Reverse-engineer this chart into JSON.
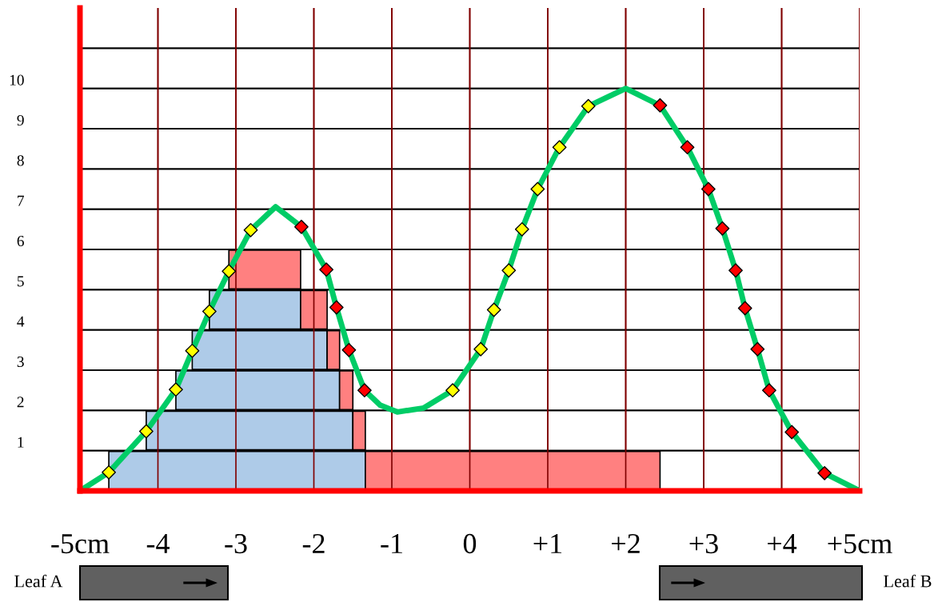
{
  "chart_data": [
    {
      "type": "bar",
      "orientation": "horizontal",
      "xlim": [
        -5,
        5
      ],
      "tick_labels": false,
      "grid": true,
      "categories": [
        null,
        null,
        null,
        null,
        null,
        null,
        null,
        null,
        null,
        null,
        null,
        null
      ],
      "series": [
        {
          "color": "#aecbe8",
          "base": [
            null,
            null,
            null,
            null,
            null,
            null,
            null,
            -3.34,
            -3.56,
            -3.77,
            -4.15,
            -4.63
          ],
          "values": [
            null,
            null,
            null,
            null,
            null,
            null,
            null,
            1.17,
            1.73,
            2.1,
            2.65,
            3.29
          ]
        },
        {
          "color": "#ff8080",
          "base": [
            null,
            null,
            null,
            null,
            null,
            null,
            -3.09,
            -2.17,
            -1.83,
            -1.67,
            -1.5,
            -1.34
          ],
          "values": [
            null,
            null,
            null,
            null,
            null,
            null,
            0.92,
            0.34,
            0.16,
            0.17,
            0.16,
            3.78
          ]
        }
      ]
    },
    {
      "type": "line",
      "xlim": [
        -5,
        5
      ],
      "ylim": [
        0,
        12
      ],
      "xticks": [
        {
          "value": -5,
          "label": "-5cm"
        },
        {
          "value": -4,
          "label": "-4"
        },
        {
          "value": -3,
          "label": "-3"
        },
        {
          "value": -2,
          "label": "-2"
        },
        {
          "value": -1,
          "label": "-1"
        },
        {
          "value": 0,
          "label": "0"
        },
        {
          "value": 1,
          "label": "+1"
        },
        {
          "value": 2,
          "label": "+2"
        },
        {
          "value": 3,
          "label": "+3"
        },
        {
          "value": 4,
          "label": "+4"
        },
        {
          "value": 5,
          "label": "+5cm"
        }
      ],
      "yticks": [
        1,
        2,
        3,
        4,
        5,
        6,
        7,
        8,
        9,
        10,
        {
          "value": 11,
          "label": null
        }
      ],
      "grid": true,
      "annotations": [
        "Leaf A",
        "Leaf B"
      ],
      "series": [
        {
          "color": "#00cc66",
          "x": [
            -5,
            -4.63,
            -4.15,
            -3.77,
            -3.56,
            -3.34,
            -3.09,
            -2.81,
            -2.49,
            -2.16,
            -1.84,
            -1.71,
            -1.55,
            -1.35,
            -1.15,
            -0.93,
            -0.59,
            -0.22,
            0.14,
            0.31,
            0.5,
            0.67,
            0.87,
            1.15,
            1.52,
            2.0,
            2.44,
            2.79,
            3.06,
            3.24,
            3.41,
            3.53,
            3.69,
            3.84,
            4.13,
            4.55,
            5
          ],
          "values": [
            0,
            0.46,
            1.48,
            2.52,
            3.48,
            4.46,
            5.46,
            6.48,
            7.06,
            6.56,
            5.5,
            4.56,
            3.5,
            2.5,
            2.13,
            1.96,
            2.06,
            2.5,
            3.52,
            4.5,
            5.48,
            6.5,
            7.5,
            8.54,
            9.56,
            10,
            9.58,
            8.54,
            7.5,
            6.52,
            5.48,
            4.54,
            3.52,
            2.5,
            1.46,
            0.44,
            0
          ]
        },
        {
          "type": "scatter",
          "marker": "diamond",
          "color": "#ffff00",
          "x": [
            -4.63,
            -4.15,
            -3.77,
            -3.56,
            -3.34,
            -3.09,
            -2.81,
            -0.22,
            0.14,
            0.31,
            0.5,
            0.67,
            0.87,
            1.15,
            1.52
          ],
          "values": [
            0.46,
            1.48,
            2.52,
            3.48,
            4.46,
            5.46,
            6.48,
            2.5,
            3.52,
            4.5,
            5.48,
            6.5,
            7.5,
            8.54,
            9.56
          ]
        },
        {
          "type": "scatter",
          "marker": "diamond",
          "color": "#ff0000",
          "x": [
            -2.16,
            -1.84,
            -1.71,
            -1.55,
            -1.35,
            2.44,
            2.79,
            3.06,
            3.24,
            3.41,
            3.53,
            3.69,
            3.84,
            4.13,
            4.55
          ],
          "values": [
            6.56,
            5.5,
            4.56,
            3.5,
            2.5,
            9.58,
            8.54,
            7.5,
            6.52,
            5.48,
            4.54,
            3.52,
            2.5,
            1.46,
            0.44
          ]
        }
      ]
    }
  ]
}
